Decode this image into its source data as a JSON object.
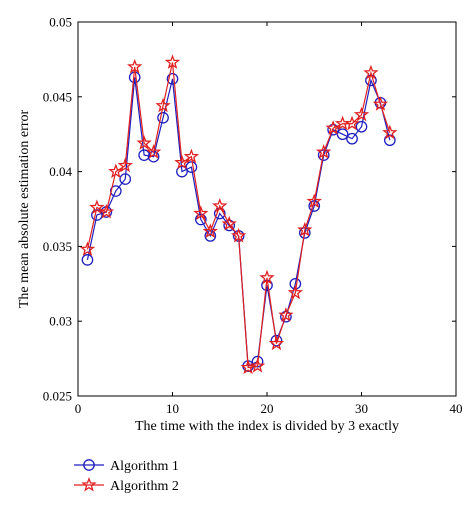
{
  "chart_data": {
    "type": "line",
    "xlabel": "The time with the index is divided by 3 exactly",
    "ylabel": "The mean absolute estimation error",
    "xlim": [
      0,
      40
    ],
    "ylim": [
      0.025,
      0.05
    ],
    "xticks": [
      0,
      10,
      20,
      30,
      40
    ],
    "yticks": [
      0.025,
      0.03,
      0.035,
      0.04,
      0.045,
      0.05
    ],
    "xtick_labels": [
      "0",
      "10",
      "20",
      "30",
      "40"
    ],
    "ytick_labels": [
      "0.025",
      "0.03",
      "0.035",
      "0.04",
      "0.045",
      "0.05"
    ],
    "grid": false,
    "legend_position": "bottom-left, below plot",
    "x": [
      1,
      2,
      3,
      4,
      5,
      6,
      7,
      8,
      9,
      10,
      11,
      12,
      13,
      14,
      15,
      16,
      17,
      18,
      19,
      20,
      21,
      22,
      23,
      24,
      25,
      26,
      27,
      28,
      29,
      30,
      31,
      32,
      33
    ],
    "series": [
      {
        "name": "Algorithm 1",
        "color": "#1f1fbf",
        "marker": "circle",
        "values": [
          0.0341,
          0.0371,
          0.0373,
          0.0387,
          0.0395,
          0.0463,
          0.0411,
          0.041,
          0.0436,
          0.0462,
          0.04,
          0.0403,
          0.0368,
          0.0357,
          0.0372,
          0.0364,
          0.0357,
          0.027,
          0.0273,
          0.0324,
          0.0287,
          0.0303,
          0.0325,
          0.0359,
          0.0377,
          0.0411,
          0.0428,
          0.0425,
          0.0422,
          0.043,
          0.0461,
          0.0446,
          0.0421
        ]
      },
      {
        "name": "Algorithm 2",
        "color": "#e02020",
        "marker": "star",
        "values": [
          0.0348,
          0.0376,
          0.0373,
          0.04,
          0.0404,
          0.047,
          0.0419,
          0.0413,
          0.0444,
          0.0473,
          0.0406,
          0.041,
          0.0372,
          0.036,
          0.0377,
          0.0365,
          0.0357,
          0.0269,
          0.027,
          0.0329,
          0.0285,
          0.0304,
          0.0319,
          0.0361,
          0.038,
          0.0413,
          0.0429,
          0.0432,
          0.0432,
          0.0438,
          0.0466,
          0.0445,
          0.0426
        ]
      }
    ]
  }
}
